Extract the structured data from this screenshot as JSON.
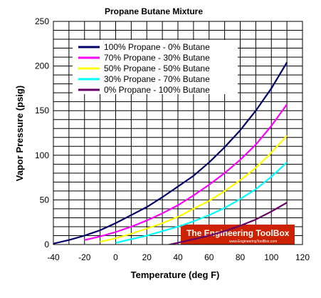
{
  "chart_data": {
    "type": "line",
    "title": "Propane Butane Mixture",
    "xlabel": "Temperature (deg F)",
    "ylabel": "Vapor Pressure (psig)",
    "xlim": [
      -40,
      120
    ],
    "ylim": [
      0,
      250
    ],
    "x_ticks": [
      -40,
      -20,
      0,
      20,
      40,
      60,
      80,
      100,
      120
    ],
    "y_ticks": [
      0,
      50,
      100,
      150,
      200,
      250
    ],
    "grid": true,
    "legend_position": "top-left",
    "series": [
      {
        "name": "100% Propane - 0% Butane",
        "color": "#000066",
        "points": [
          [
            -40,
            1
          ],
          [
            -30,
            5
          ],
          [
            -20,
            10
          ],
          [
            -10,
            16
          ],
          [
            0,
            24
          ],
          [
            10,
            33
          ],
          [
            20,
            42
          ],
          [
            30,
            53
          ],
          [
            40,
            65
          ],
          [
            50,
            77
          ],
          [
            60,
            92
          ],
          [
            70,
            109
          ],
          [
            80,
            128
          ],
          [
            90,
            150
          ],
          [
            100,
            175
          ],
          [
            110,
            204
          ]
        ]
      },
      {
        "name": "70% Propane - 30% Butane",
        "color": "#ff00ff",
        "points": [
          [
            -20,
            5
          ],
          [
            -10,
            9
          ],
          [
            0,
            14
          ],
          [
            10,
            20
          ],
          [
            20,
            27
          ],
          [
            30,
            35
          ],
          [
            40,
            44
          ],
          [
            50,
            55
          ],
          [
            60,
            67
          ],
          [
            70,
            80
          ],
          [
            80,
            95
          ],
          [
            90,
            112
          ],
          [
            100,
            133
          ],
          [
            110,
            157
          ]
        ]
      },
      {
        "name": "50% Propane - 50% Butane",
        "color": "#ffff00",
        "points": [
          [
            -10,
            3
          ],
          [
            0,
            7
          ],
          [
            10,
            12
          ],
          [
            20,
            18
          ],
          [
            30,
            24
          ],
          [
            40,
            31
          ],
          [
            50,
            40
          ],
          [
            60,
            49
          ],
          [
            70,
            60
          ],
          [
            80,
            72
          ],
          [
            90,
            86
          ],
          [
            100,
            103
          ],
          [
            110,
            122
          ]
        ]
      },
      {
        "name": "30% Propane - 70% Butane",
        "color": "#00ffff",
        "points": [
          [
            0,
            2
          ],
          [
            10,
            6
          ],
          [
            20,
            10
          ],
          [
            30,
            15
          ],
          [
            40,
            20
          ],
          [
            50,
            26
          ],
          [
            60,
            33
          ],
          [
            70,
            41
          ],
          [
            80,
            51
          ],
          [
            90,
            62
          ],
          [
            100,
            76
          ],
          [
            110,
            92
          ]
        ]
      },
      {
        "name": "0% Propane - 100% Butane",
        "color": "#660066",
        "points": [
          [
            30,
            -2
          ],
          [
            40,
            2
          ],
          [
            50,
            6
          ],
          [
            60,
            10
          ],
          [
            70,
            15
          ],
          [
            80,
            21
          ],
          [
            90,
            28
          ],
          [
            100,
            37
          ],
          [
            110,
            47
          ]
        ]
      }
    ]
  },
  "watermark": {
    "title": "The Engineering ToolBox",
    "url": "www.EngineeringToolBox.com"
  }
}
